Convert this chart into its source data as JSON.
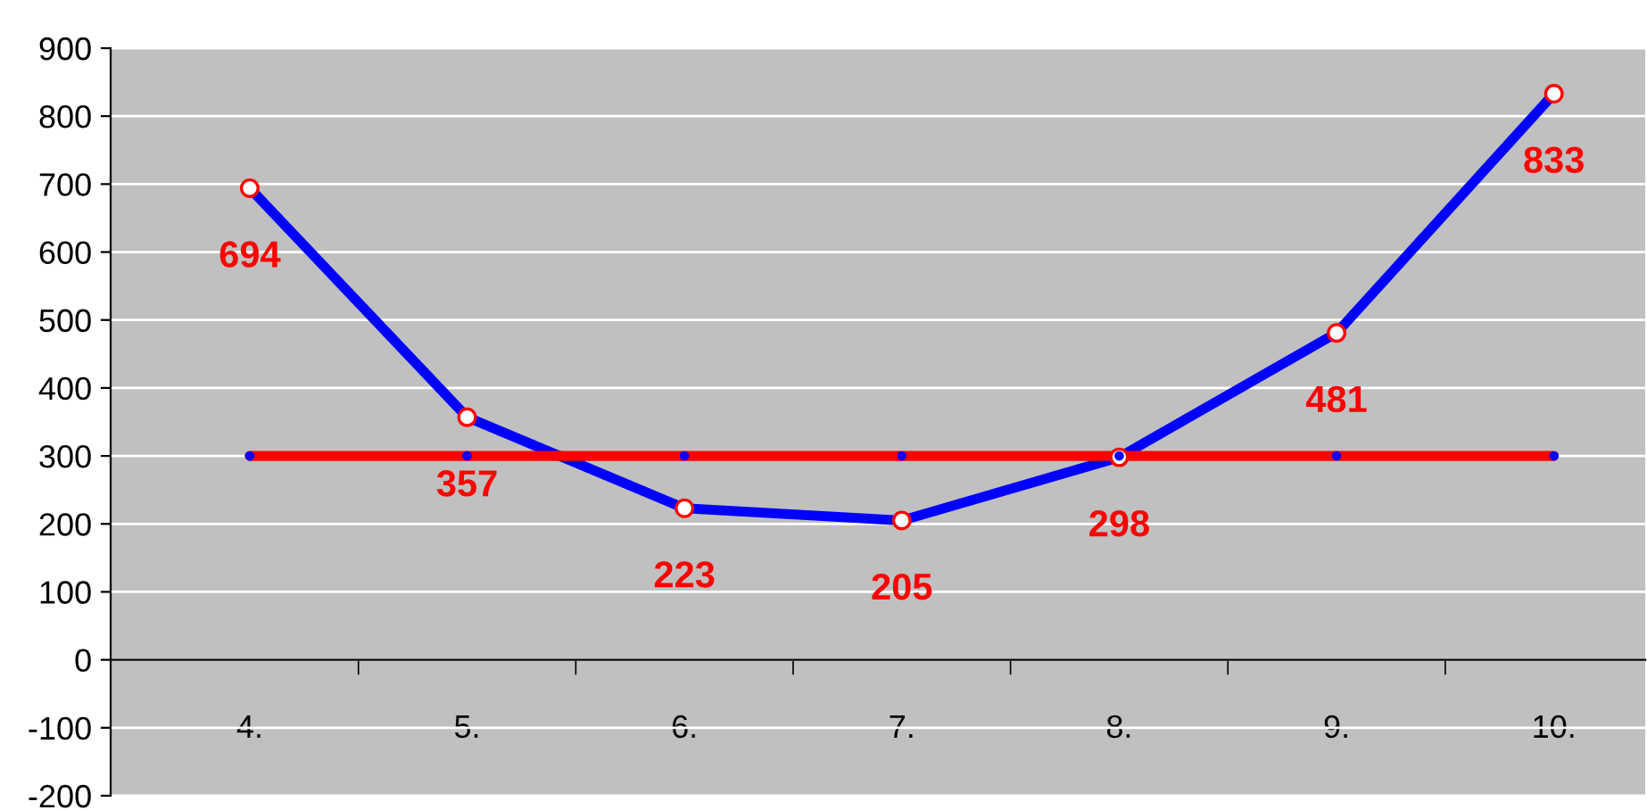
{
  "chart_data": {
    "type": "line",
    "categories": [
      "4.",
      "5.",
      "6.",
      "7.",
      "8.",
      "9.",
      "10."
    ],
    "series": [
      {
        "color": "#0000ff",
        "values": [
          694,
          357,
          223,
          205,
          298,
          481,
          833
        ],
        "marker": "circle",
        "data_labels": true
      },
      {
        "color": "#ff0000",
        "values": [
          300,
          300,
          300,
          300,
          300,
          300,
          300
        ],
        "marker": "circle"
      }
    ],
    "ylim": [
      -200,
      900
    ],
    "yticks": [
      -200,
      -100,
      0,
      100,
      200,
      300,
      400,
      500,
      600,
      700,
      800,
      900
    ],
    "grid": "y",
    "legend": false
  }
}
